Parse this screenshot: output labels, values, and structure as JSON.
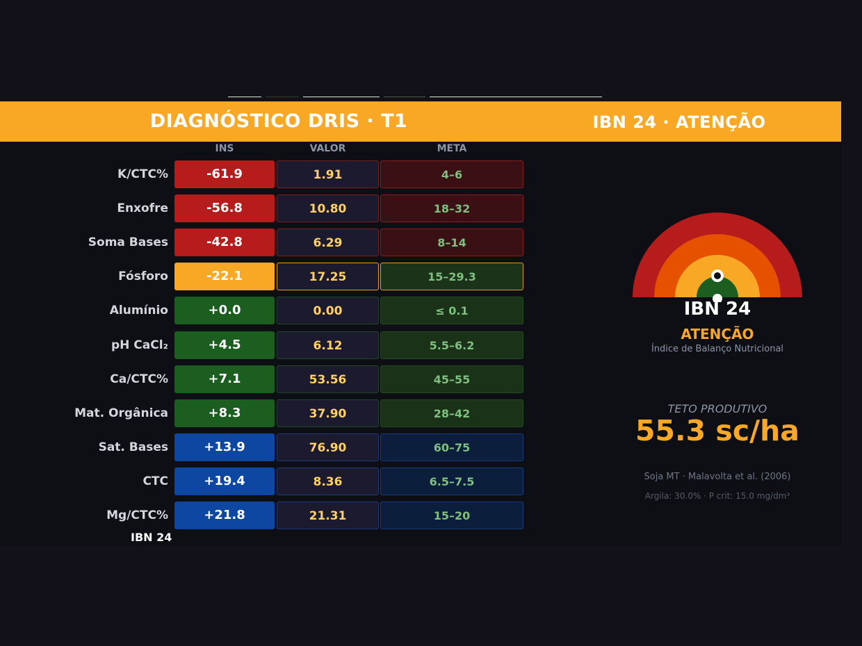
{
  "header": {
    "title": "DIAGNÓSTICO DRIS  ·  T1",
    "status": "IBN 24  ·  ATENÇÃO"
  },
  "columns": {
    "ins": "INS",
    "valor": "VALOR",
    "meta": "META"
  },
  "rows": [
    {
      "label": "K/CTC%",
      "ins": "-61.9",
      "valor": "1.91",
      "meta": "4–6",
      "tone": "red"
    },
    {
      "label": "Enxofre",
      "ins": "-56.8",
      "valor": "10.80",
      "meta": "18–32",
      "tone": "red"
    },
    {
      "label": "Soma Bases",
      "ins": "-42.8",
      "valor": "6.29",
      "meta": "8–14",
      "tone": "red"
    },
    {
      "label": "Fósforo",
      "ins": "-22.1",
      "valor": "17.25",
      "meta": "15–29.3",
      "tone": "orange"
    },
    {
      "label": "Alumínio",
      "ins": "+0.0",
      "valor": "0.00",
      "meta": "≤ 0.1",
      "tone": "green"
    },
    {
      "label": "pH CaCl₂",
      "ins": "+4.5",
      "valor": "6.12",
      "meta": "5.5–6.2",
      "tone": "green"
    },
    {
      "label": "Ca/CTC%",
      "ins": "+7.1",
      "valor": "53.56",
      "meta": "45–55",
      "tone": "green"
    },
    {
      "label": "Mat. Orgânica",
      "ins": "+8.3",
      "valor": "37.90",
      "meta": "28–42",
      "tone": "green"
    },
    {
      "label": "Sat. Bases",
      "ins": "+13.9",
      "valor": "76.90",
      "meta": "60–75",
      "tone": "blue"
    },
    {
      "label": "CTC",
      "ins": "+19.4",
      "valor": "8.36",
      "meta": "6.5–7.5",
      "tone": "blue"
    },
    {
      "label": "Mg/CTC%",
      "ins": "+21.8",
      "valor": "21.31",
      "meta": "15–20",
      "tone": "blue"
    }
  ],
  "footer_label": "IBN 24",
  "gauge": {
    "ibn": "IBN 24",
    "status": "ATENÇÃO",
    "caption": "Índice de Balanço Nutricional"
  },
  "teto": {
    "label": "TETO PRODUTIVO",
    "value": "55.3 sc/ha"
  },
  "source": "Soja MT  ·  Malavolta et al. (2006)",
  "params": "Argila: 30.0%  ·  P crit: 15.0 mg/dm³",
  "tones": {
    "red": {
      "ins": "#b71c1c",
      "val_border": "#7a1e22",
      "meta_bg": "#3a1014",
      "meta_border": "#8a1c20"
    },
    "orange": {
      "ins": "#f9a826",
      "val_border": "#f0a020",
      "meta_bg": "#1b3318",
      "meta_border": "#e0a020"
    },
    "green": {
      "ins": "#1b5e20",
      "val_border": "#21452a",
      "meta_bg": "#1a3318",
      "meta_border": "#244a22"
    },
    "blue": {
      "ins": "#0d47a1",
      "val_border": "#1e3a7a",
      "meta_bg": "#0b1e3c",
      "meta_border": "#173a80"
    }
  },
  "colors": {
    "accent": "#f9a826",
    "valor_bg": "#1c1a2e"
  }
}
